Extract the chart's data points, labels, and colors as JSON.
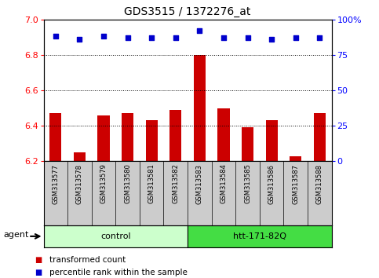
{
  "title": "GDS3515 / 1372276_at",
  "samples": [
    "GSM313577",
    "GSM313578",
    "GSM313579",
    "GSM313580",
    "GSM313581",
    "GSM313582",
    "GSM313583",
    "GSM313584",
    "GSM313585",
    "GSM313586",
    "GSM313587",
    "GSM313588"
  ],
  "bar_values": [
    6.47,
    6.25,
    6.46,
    6.47,
    6.43,
    6.49,
    6.8,
    6.5,
    6.39,
    6.43,
    6.23,
    6.47
  ],
  "percentile_values": [
    88,
    86,
    88,
    87,
    87,
    87,
    92,
    87,
    87,
    86,
    87,
    87
  ],
  "bar_color": "#cc0000",
  "dot_color": "#0000cc",
  "ylim_left": [
    6.2,
    7.0
  ],
  "ylim_right": [
    0,
    100
  ],
  "yticks_left": [
    6.2,
    6.4,
    6.6,
    6.8,
    7.0
  ],
  "yticks_right": [
    0,
    25,
    50,
    75,
    100
  ],
  "ytick_labels_right": [
    "0",
    "25",
    "50",
    "75",
    "100%"
  ],
  "groups": [
    {
      "label": "control",
      "start": 0,
      "end": 6,
      "color": "#ccffcc"
    },
    {
      "label": "htt-171-82Q",
      "start": 6,
      "end": 12,
      "color": "#44dd44"
    }
  ],
  "agent_label": "agent",
  "legend": [
    {
      "label": "transformed count",
      "color": "#cc0000"
    },
    {
      "label": "percentile rank within the sample",
      "color": "#0000cc"
    }
  ],
  "plot_bg": "#ffffff",
  "bar_bottom": 6.2,
  "label_band_color": "#cccccc",
  "title_fontsize": 10
}
